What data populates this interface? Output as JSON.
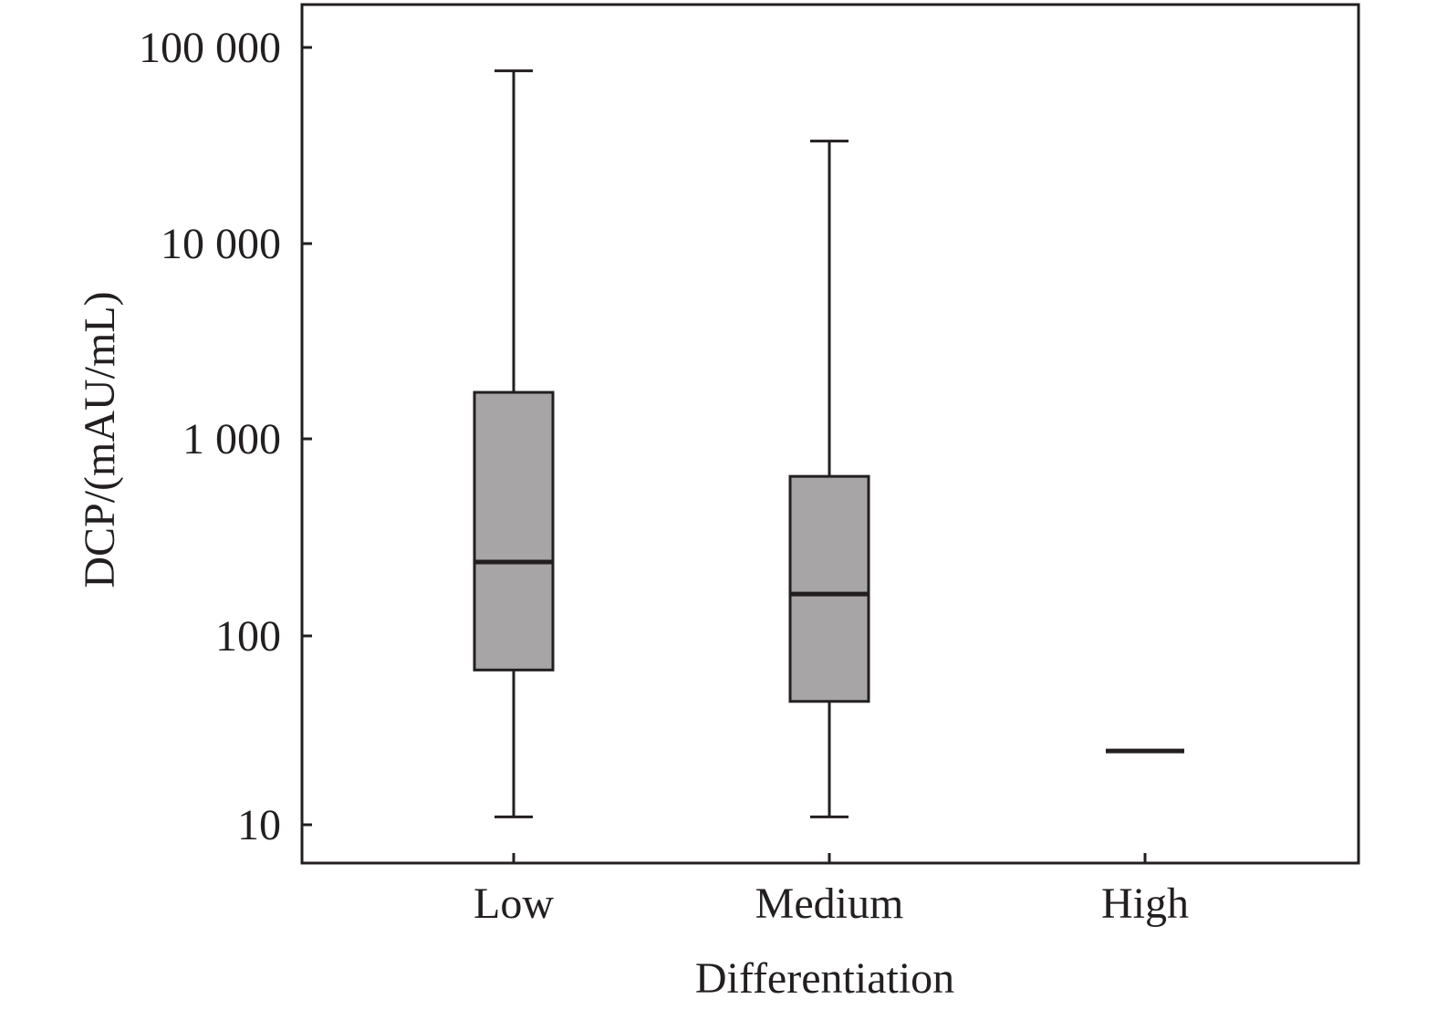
{
  "chart_data": {
    "type": "box",
    "title": "",
    "xlabel": "Differentiation",
    "ylabel": "DCP/(mAU/mL)",
    "yscale": "log",
    "ylim": [
      7,
      160000
    ],
    "yticks": [
      10,
      100,
      1000,
      10000,
      100000
    ],
    "ytick_labels": [
      "10",
      "100",
      "1 000",
      "10 000",
      "100 000"
    ],
    "categories": [
      "Low",
      "Medium",
      "High"
    ],
    "boxes": [
      {
        "category": "Low",
        "whisker_low": 11,
        "q1": 66,
        "median": 237,
        "q3": 1730,
        "whisker_high": 76000
      },
      {
        "category": "Medium",
        "whisker_low": 11,
        "q1": 45,
        "median": 163,
        "q3": 645,
        "whisker_high": 33300
      },
      {
        "category": "High",
        "whisker_low": 24.6,
        "q1": 24.6,
        "median": 24.6,
        "q3": 24.6,
        "whisker_high": 24.6
      }
    ],
    "colors": {
      "box_fill": "#a7a5a6",
      "line": "#231f20"
    },
    "grid": false,
    "legend": "none"
  }
}
